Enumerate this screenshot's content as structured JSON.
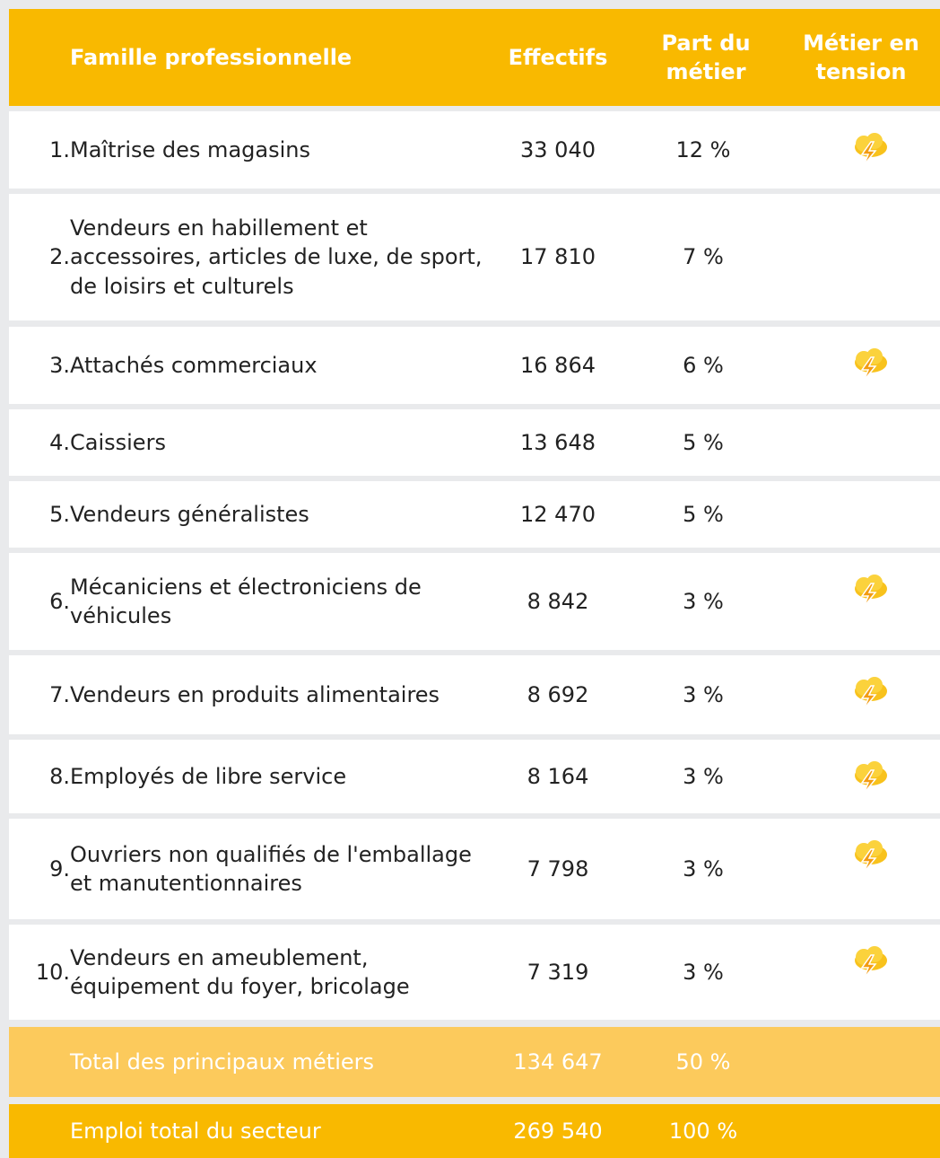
{
  "header": {
    "famille": "Famille professionnelle",
    "effectifs": "Effectifs",
    "part": "Part du métier",
    "tension": "Métier en tension"
  },
  "table": {
    "rows": [
      {
        "rank": "1.",
        "label": "Maîtrise des magasins",
        "effectifs": "33 040",
        "part": "12 %",
        "tension": true
      },
      {
        "rank": "2.",
        "label": "Vendeurs en habillement et accessoires, articles de luxe, de sport, de loisirs et culturels",
        "effectifs": "17 810",
        "part": "7 %",
        "tension": false
      },
      {
        "rank": "3.",
        "label": "Attachés commerciaux",
        "effectifs": "16 864",
        "part": "6 %",
        "tension": true
      },
      {
        "rank": "4.",
        "label": "Caissiers",
        "effectifs": "13 648",
        "part": "5 %",
        "tension": false
      },
      {
        "rank": "5.",
        "label": "Vendeurs généralistes",
        "effectifs": "12 470",
        "part": "5 %",
        "tension": false
      },
      {
        "rank": "6.",
        "label": "Mécaniciens et électroniciens de véhicules",
        "effectifs": "8 842",
        "part": "3 %",
        "tension": true
      },
      {
        "rank": "7.",
        "label": "Vendeurs en produits alimentaires",
        "effectifs": "8 692",
        "part": "3 %",
        "tension": true
      },
      {
        "rank": "8.",
        "label": "Employés de libre service",
        "effectifs": "8 164",
        "part": "3 %",
        "tension": true
      },
      {
        "rank": "9.",
        "label": "Ouvriers non qualifiés de l'emballage et manutentionnaires",
        "effectifs": "7 798",
        "part": "3 %",
        "tension": true
      },
      {
        "rank": "10.",
        "label": "Vendeurs en ameublement, équipement du foyer, bricolage",
        "effectifs": "7 319",
        "part": "3 %",
        "tension": true
      }
    ],
    "totals": [
      {
        "label": "Total des principaux métiers",
        "effectifs": "134 647",
        "part": "50 %"
      },
      {
        "label": "Emploi total du secteur",
        "effectifs": "269 540",
        "part": "100 %"
      }
    ]
  }
}
